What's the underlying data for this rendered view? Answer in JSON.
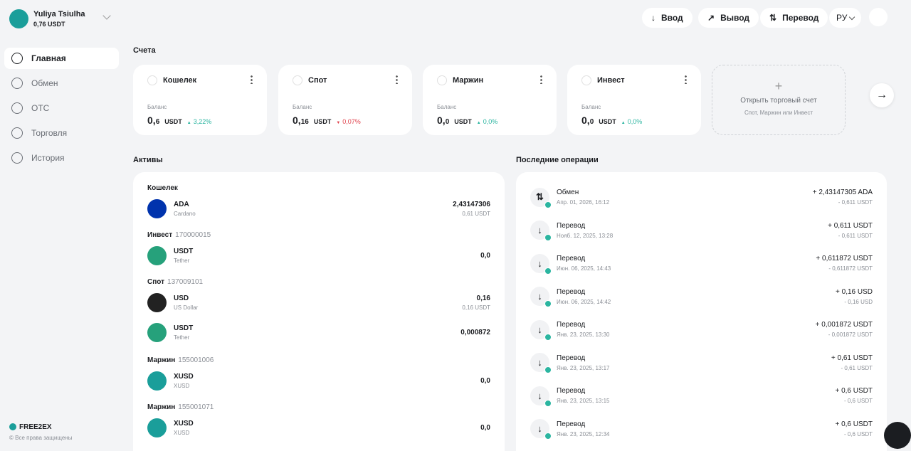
{
  "user": {
    "name": "Yuliya Tsiulha",
    "balance": "0,76 USDT"
  },
  "header": {
    "buttons": [
      "Ввод",
      "Вывод",
      "Перевод"
    ],
    "language": "РУ"
  },
  "nav": [
    "Главная",
    "Обмен",
    "OTC",
    "Торговля",
    "История"
  ],
  "footer": {
    "brand": "FREE2EX",
    "copyright": "© Все права защищены"
  },
  "accounts": {
    "title": "Счета",
    "balance_label": "Баланс",
    "items": [
      {
        "name": "Кошелек",
        "amount_main": "0,",
        "amount_decimals": "6",
        "currency": "USDT",
        "change": "3,22%",
        "trend": "up"
      },
      {
        "name": "Спот",
        "amount_main": "0,",
        "amount_decimals": "16",
        "currency": "USDT",
        "change": "0,07%",
        "trend": "down"
      },
      {
        "name": "Маржин",
        "amount_main": "0,",
        "amount_decimals": "0",
        "currency": "USDT",
        "change": "0,0%",
        "trend": "up"
      },
      {
        "name": "Инвест",
        "amount_main": "0,",
        "amount_decimals": "0",
        "currency": "USDT",
        "change": "0,0%",
        "trend": "up"
      }
    ],
    "open": {
      "title": "Открыть торговый счет",
      "subtitle": "Спот, Маржин или Инвест"
    }
  },
  "assets": {
    "title": "Активы",
    "groups": [
      {
        "name": "Кошелек",
        "items": [
          {
            "symbol": "ADA",
            "name": "Cardano",
            "amount": "2,43147306",
            "sub": "0,61 USDT",
            "color": "#0033ad"
          }
        ]
      },
      {
        "name": "Инвест",
        "id": "170000015",
        "items": [
          {
            "symbol": "USDT",
            "name": "Tether",
            "amount": "0,0",
            "color": "#26a17b"
          }
        ]
      },
      {
        "name": "Спот",
        "id": "137009101",
        "items": [
          {
            "symbol": "USD",
            "name": "US Dollar",
            "amount": "0,16",
            "sub": "0,16 USDT",
            "color": "#222222"
          },
          {
            "symbol": "USDT",
            "name": "Tether",
            "amount": "0,000872",
            "color": "#26a17b"
          }
        ]
      },
      {
        "name": "Маржин",
        "id": "155001006",
        "items": [
          {
            "symbol": "XUSD",
            "name": "XUSD",
            "amount": "0,0",
            "color": "#1a9e9a"
          }
        ]
      },
      {
        "name": "Маржин",
        "id": "155001071",
        "items": [
          {
            "symbol": "XUSD",
            "name": "XUSD",
            "amount": "0,0",
            "color": "#1a9e9a"
          }
        ]
      }
    ]
  },
  "operations": {
    "title": "Последние операции",
    "items": [
      {
        "type": "Обмен",
        "date": "Апр. 01, 2026, 16:12",
        "amount": "+ 2,43147305 ADA",
        "sub": "- 0,611 USDT"
      },
      {
        "type": "Перевод",
        "date": "Нояб. 12, 2025, 13:28",
        "amount": "+ 0,611 USDT",
        "sub": "- 0,611 USDT"
      },
      {
        "type": "Перевод",
        "date": "Июн. 06, 2025, 14:43",
        "amount": "+ 0,611872 USDT",
        "sub": "- 0,611872 USDT"
      },
      {
        "type": "Перевод",
        "date": "Июн. 06, 2025, 14:42",
        "amount": "+ 0,16 USD",
        "sub": "- 0,16 USD"
      },
      {
        "type": "Перевод",
        "date": "Янв. 23, 2025, 13:30",
        "amount": "+ 0,001872 USDT",
        "sub": "- 0,001872 USDT"
      },
      {
        "type": "Перевод",
        "date": "Янв. 23, 2025, 13:17",
        "amount": "+ 0,61 USDT",
        "sub": "- 0,61 USDT"
      },
      {
        "type": "Перевод",
        "date": "Янв. 23, 2025, 13:15",
        "amount": "+ 0,6 USDT",
        "sub": "- 0,6 USDT"
      },
      {
        "type": "Перевод",
        "date": "Янв. 23, 2025, 12:34",
        "amount": "+ 0,6 USDT",
        "sub": "- 0,6 USDT"
      }
    ]
  }
}
